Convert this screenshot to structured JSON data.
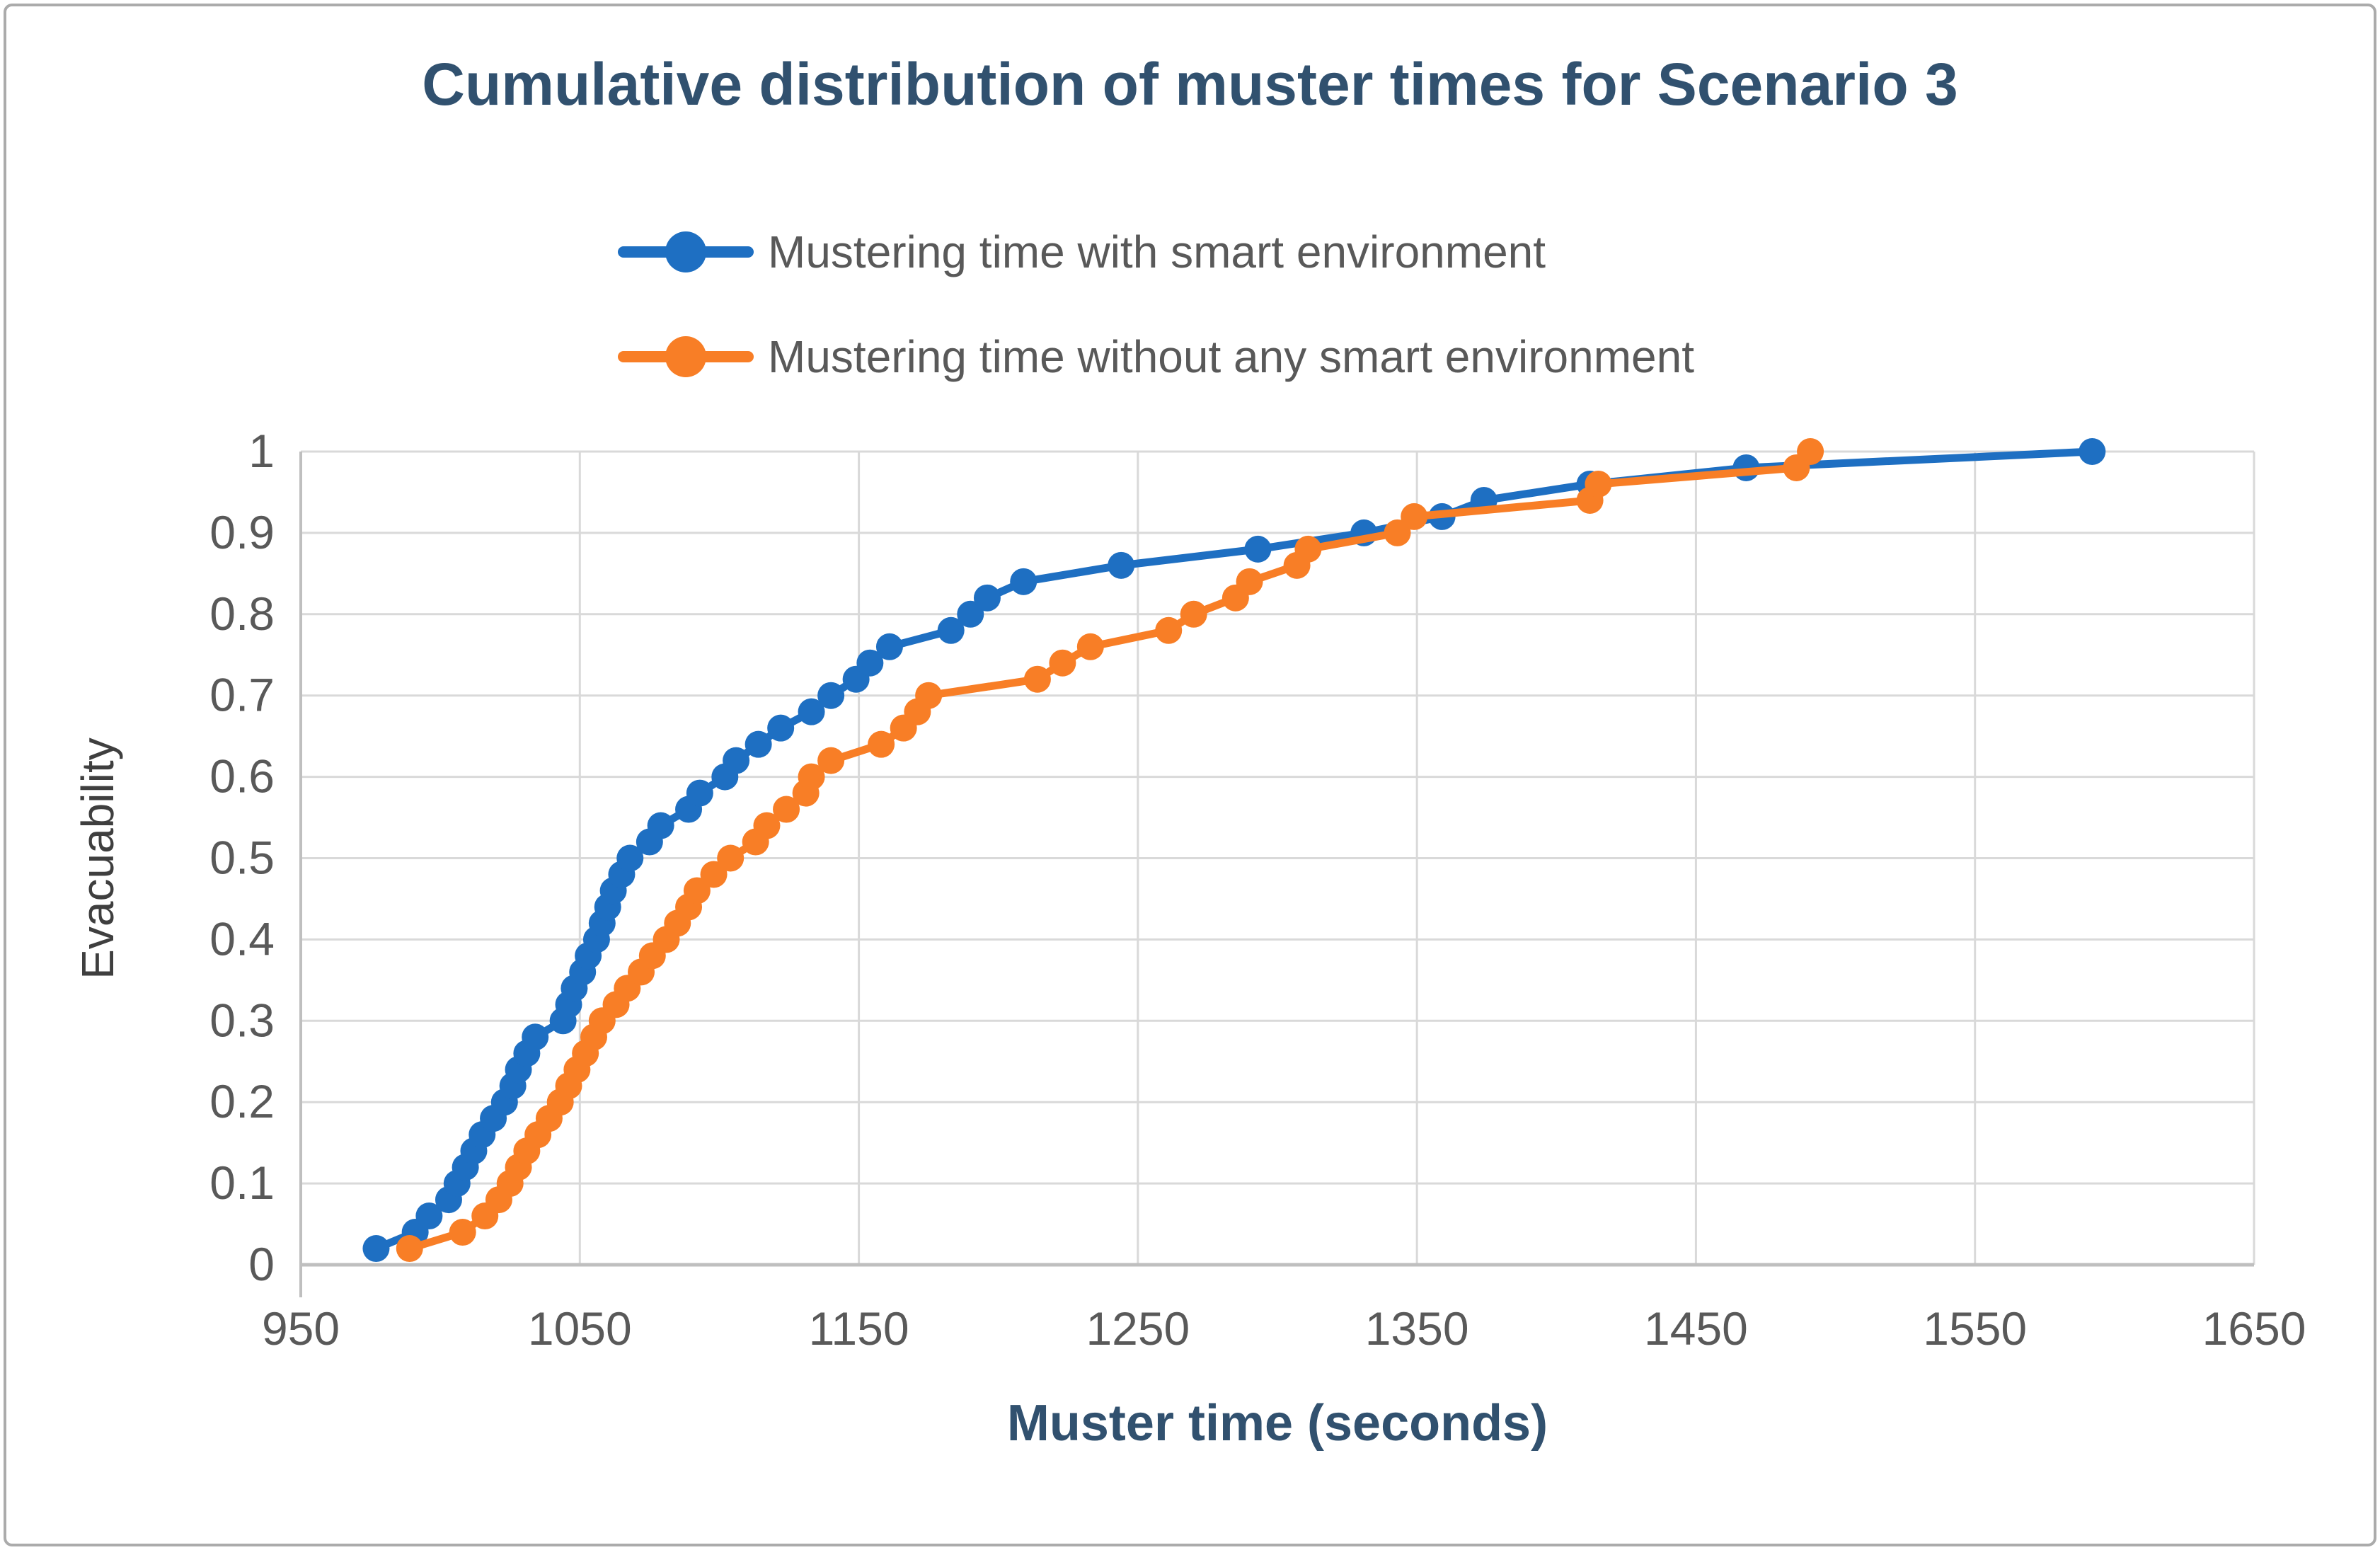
{
  "chart_data": {
    "type": "line",
    "title": "Cumulative distribution of muster times for Scenario 3",
    "xlabel": "Muster time (seconds)",
    "ylabel": "Evacuability",
    "xlim": [
      950,
      1650
    ],
    "ylim": [
      0,
      1
    ],
    "x_ticks": [
      950,
      1050,
      1150,
      1250,
      1350,
      1450,
      1550,
      1650
    ],
    "y_ticks": [
      0,
      0.1,
      0.2,
      0.3,
      0.4,
      0.5,
      0.6,
      0.7,
      0.8,
      0.9,
      1
    ],
    "grid": true,
    "legend_position": "top-center",
    "series": [
      {
        "name": "Mustering time with smart environment",
        "color": "#1E6FC2",
        "points": [
          [
            977,
            0.02
          ],
          [
            991,
            0.04
          ],
          [
            996,
            0.06
          ],
          [
            1003,
            0.08
          ],
          [
            1006,
            0.1
          ],
          [
            1009,
            0.12
          ],
          [
            1012,
            0.14
          ],
          [
            1015,
            0.16
          ],
          [
            1019,
            0.18
          ],
          [
            1023,
            0.2
          ],
          [
            1026,
            0.22
          ],
          [
            1028,
            0.24
          ],
          [
            1031,
            0.26
          ],
          [
            1034,
            0.28
          ],
          [
            1044,
            0.3
          ],
          [
            1046,
            0.32
          ],
          [
            1048,
            0.34
          ],
          [
            1051,
            0.36
          ],
          [
            1053,
            0.38
          ],
          [
            1056,
            0.4
          ],
          [
            1058,
            0.42
          ],
          [
            1060,
            0.44
          ],
          [
            1062,
            0.46
          ],
          [
            1065,
            0.48
          ],
          [
            1068,
            0.5
          ],
          [
            1075,
            0.52
          ],
          [
            1079,
            0.54
          ],
          [
            1089,
            0.56
          ],
          [
            1093,
            0.58
          ],
          [
            1102,
            0.6
          ],
          [
            1106,
            0.62
          ],
          [
            1114,
            0.64
          ],
          [
            1122,
            0.66
          ],
          [
            1133,
            0.68
          ],
          [
            1140,
            0.7
          ],
          [
            1149,
            0.72
          ],
          [
            1154,
            0.74
          ],
          [
            1161,
            0.76
          ],
          [
            1183,
            0.78
          ],
          [
            1190,
            0.8
          ],
          [
            1196,
            0.82
          ],
          [
            1209,
            0.84
          ],
          [
            1244,
            0.86
          ],
          [
            1293,
            0.88
          ],
          [
            1331,
            0.9
          ],
          [
            1359,
            0.92
          ],
          [
            1374,
            0.94
          ],
          [
            1412,
            0.96
          ],
          [
            1468,
            0.98
          ],
          [
            1592,
            1.0
          ]
        ]
      },
      {
        "name": "Mustering time without any smart environment",
        "color": "#F87E26",
        "points": [
          [
            989,
            0.02
          ],
          [
            1008,
            0.04
          ],
          [
            1016,
            0.06
          ],
          [
            1021,
            0.08
          ],
          [
            1025,
            0.1
          ],
          [
            1028,
            0.12
          ],
          [
            1031,
            0.14
          ],
          [
            1035,
            0.16
          ],
          [
            1039,
            0.18
          ],
          [
            1043,
            0.2
          ],
          [
            1046,
            0.22
          ],
          [
            1049,
            0.24
          ],
          [
            1052,
            0.26
          ],
          [
            1055,
            0.28
          ],
          [
            1058,
            0.3
          ],
          [
            1063,
            0.32
          ],
          [
            1067,
            0.34
          ],
          [
            1072,
            0.36
          ],
          [
            1076,
            0.38
          ],
          [
            1081,
            0.4
          ],
          [
            1085,
            0.42
          ],
          [
            1089,
            0.44
          ],
          [
            1092,
            0.46
          ],
          [
            1098,
            0.48
          ],
          [
            1104,
            0.5
          ],
          [
            1113,
            0.52
          ],
          [
            1117,
            0.54
          ],
          [
            1124,
            0.56
          ],
          [
            1131,
            0.58
          ],
          [
            1133,
            0.6
          ],
          [
            1140,
            0.62
          ],
          [
            1158,
            0.64
          ],
          [
            1166,
            0.66
          ],
          [
            1171,
            0.68
          ],
          [
            1175,
            0.7
          ],
          [
            1214,
            0.72
          ],
          [
            1223,
            0.74
          ],
          [
            1233,
            0.76
          ],
          [
            1261,
            0.78
          ],
          [
            1270,
            0.8
          ],
          [
            1285,
            0.82
          ],
          [
            1290,
            0.84
          ],
          [
            1307,
            0.86
          ],
          [
            1311,
            0.88
          ],
          [
            1343,
            0.9
          ],
          [
            1349,
            0.92
          ],
          [
            1412,
            0.94
          ],
          [
            1415,
            0.96
          ],
          [
            1486,
            0.98
          ],
          [
            1491,
            1.0
          ]
        ]
      }
    ]
  },
  "colors": {
    "gridline": "#D9D9D9",
    "axis_line": "#BFBFBF",
    "tick_text": "#595959",
    "title_text": "#31516F",
    "y_axis_title_text": "#3F3F3F",
    "frame_border": "#ABABAB",
    "background": "#FFFFFF"
  }
}
